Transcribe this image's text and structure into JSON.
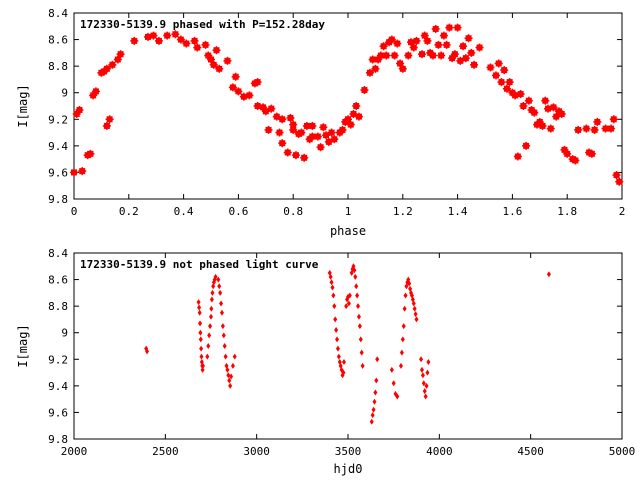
{
  "chart_data": [
    {
      "type": "scatter",
      "title": "172330-5139.9 phased with P=152.28day",
      "xlabel": "phase",
      "ylabel": "I[mag]",
      "xlim": [
        0,
        2
      ],
      "ylim": [
        9.8,
        8.4
      ],
      "y_inverted": true,
      "grid": false,
      "marker_color": "#ff0000",
      "x_ticks": [
        0,
        0.2,
        0.4,
        0.6,
        0.8,
        1,
        1.2,
        1.4,
        1.6,
        1.8,
        2
      ],
      "x_tick_labels": [
        "0",
        "0.2",
        "0.4",
        "0.6",
        "0.8",
        "1",
        "1.2",
        "1.4",
        "1.6",
        "1.8",
        "2"
      ],
      "y_ticks": [
        8.4,
        8.6,
        8.8,
        9,
        9.2,
        9.4,
        9.6,
        9.8
      ],
      "y_tick_labels": [
        "8.4",
        "8.6",
        "8.8",
        "9",
        "9.2",
        "9.4",
        "9.6",
        "9.8"
      ],
      "points": [
        [
          0.0,
          9.6
        ],
        [
          0.01,
          9.16
        ],
        [
          0.02,
          9.13
        ],
        [
          0.03,
          9.59
        ],
        [
          0.05,
          9.47
        ],
        [
          0.06,
          9.46
        ],
        [
          0.07,
          9.02
        ],
        [
          0.08,
          8.99
        ],
        [
          0.1,
          8.85
        ],
        [
          0.11,
          8.84
        ],
        [
          0.12,
          8.82
        ],
        [
          0.12,
          9.25
        ],
        [
          0.13,
          9.2
        ],
        [
          0.14,
          8.79
        ],
        [
          0.16,
          8.75
        ],
        [
          0.17,
          8.71
        ],
        [
          0.22,
          8.61
        ],
        [
          0.27,
          8.58
        ],
        [
          0.29,
          8.57
        ],
        [
          0.31,
          8.61
        ],
        [
          0.34,
          8.57
        ],
        [
          0.37,
          8.56
        ],
        [
          0.39,
          8.6
        ],
        [
          0.41,
          8.63
        ],
        [
          0.44,
          8.61
        ],
        [
          0.45,
          8.66
        ],
        [
          0.48,
          8.64
        ],
        [
          0.49,
          8.72
        ],
        [
          0.5,
          8.75
        ],
        [
          0.51,
          8.79
        ],
        [
          0.52,
          8.68
        ],
        [
          0.53,
          8.82
        ],
        [
          0.56,
          8.76
        ],
        [
          0.58,
          8.96
        ],
        [
          0.59,
          8.88
        ],
        [
          0.6,
          8.99
        ],
        [
          0.62,
          9.03
        ],
        [
          0.64,
          9.02
        ],
        [
          0.66,
          8.93
        ],
        [
          0.67,
          8.92
        ],
        [
          0.67,
          9.1
        ],
        [
          0.69,
          9.11
        ],
        [
          0.7,
          9.14
        ],
        [
          0.71,
          9.28
        ],
        [
          0.72,
          9.12
        ],
        [
          0.74,
          9.18
        ],
        [
          0.75,
          9.3
        ],
        [
          0.76,
          9.38
        ],
        [
          0.76,
          9.2
        ],
        [
          0.78,
          9.45
        ],
        [
          0.79,
          9.19
        ],
        [
          0.8,
          9.28
        ],
        [
          0.8,
          9.24
        ],
        [
          0.81,
          9.47
        ],
        [
          0.82,
          9.31
        ],
        [
          0.83,
          9.3
        ],
        [
          0.84,
          9.49
        ],
        [
          0.85,
          9.25
        ],
        [
          0.86,
          9.35
        ],
        [
          0.87,
          9.33
        ],
        [
          0.87,
          9.25
        ],
        [
          0.89,
          9.33
        ],
        [
          0.9,
          9.41
        ],
        [
          0.91,
          9.26
        ],
        [
          0.92,
          9.32
        ],
        [
          0.93,
          9.37
        ],
        [
          0.94,
          9.3
        ],
        [
          0.95,
          9.35
        ],
        [
          0.97,
          9.3
        ],
        [
          0.98,
          9.28
        ],
        [
          0.99,
          9.22
        ],
        [
          1.0,
          9.2
        ],
        [
          1.01,
          9.24
        ],
        [
          1.02,
          9.16
        ],
        [
          1.03,
          9.1
        ],
        [
          1.04,
          9.18
        ],
        [
          1.06,
          8.98
        ],
        [
          1.08,
          8.85
        ],
        [
          1.09,
          8.75
        ],
        [
          1.1,
          8.82
        ],
        [
          1.11,
          8.75
        ],
        [
          1.12,
          8.72
        ],
        [
          1.13,
          8.65
        ],
        [
          1.14,
          8.72
        ],
        [
          1.15,
          8.62
        ],
        [
          1.16,
          8.6
        ],
        [
          1.17,
          8.72
        ],
        [
          1.18,
          8.63
        ],
        [
          1.19,
          8.78
        ],
        [
          1.2,
          8.82
        ],
        [
          1.22,
          8.72
        ],
        [
          1.23,
          8.62
        ],
        [
          1.24,
          8.66
        ],
        [
          1.25,
          8.61
        ],
        [
          1.27,
          8.71
        ],
        [
          1.28,
          8.57
        ],
        [
          1.29,
          8.61
        ],
        [
          1.3,
          8.7
        ],
        [
          1.31,
          8.72
        ],
        [
          1.32,
          8.52
        ],
        [
          1.33,
          8.64
        ],
        [
          1.34,
          8.72
        ],
        [
          1.35,
          8.57
        ],
        [
          1.36,
          8.64
        ],
        [
          1.37,
          8.51
        ],
        [
          1.38,
          8.74
        ],
        [
          1.39,
          8.71
        ],
        [
          1.4,
          8.51
        ],
        [
          1.41,
          8.76
        ],
        [
          1.42,
          8.65
        ],
        [
          1.43,
          8.74
        ],
        [
          1.44,
          8.59
        ],
        [
          1.45,
          8.7
        ],
        [
          1.46,
          8.79
        ],
        [
          1.48,
          8.66
        ],
        [
          1.52,
          8.81
        ],
        [
          1.54,
          8.87
        ],
        [
          1.55,
          8.78
        ],
        [
          1.56,
          8.92
        ],
        [
          1.57,
          8.83
        ],
        [
          1.58,
          8.97
        ],
        [
          1.59,
          8.92
        ],
        [
          1.6,
          9.0
        ],
        [
          1.61,
          9.02
        ],
        [
          1.62,
          9.48
        ],
        [
          1.63,
          9.01
        ],
        [
          1.64,
          9.1
        ],
        [
          1.65,
          9.4
        ],
        [
          1.66,
          9.06
        ],
        [
          1.67,
          9.13
        ],
        [
          1.68,
          9.15
        ],
        [
          1.69,
          9.24
        ],
        [
          1.7,
          9.22
        ],
        [
          1.71,
          9.25
        ],
        [
          1.72,
          9.06
        ],
        [
          1.73,
          9.12
        ],
        [
          1.74,
          9.27
        ],
        [
          1.75,
          9.11
        ],
        [
          1.76,
          9.18
        ],
        [
          1.77,
          9.14
        ],
        [
          1.78,
          9.16
        ],
        [
          1.79,
          9.43
        ],
        [
          1.8,
          9.46
        ],
        [
          1.82,
          9.5
        ],
        [
          1.83,
          9.51
        ],
        [
          1.84,
          9.28
        ],
        [
          1.87,
          9.27
        ],
        [
          1.88,
          9.45
        ],
        [
          1.89,
          9.46
        ],
        [
          1.9,
          9.28
        ],
        [
          1.91,
          9.22
        ],
        [
          1.94,
          9.27
        ],
        [
          1.96,
          9.27
        ],
        [
          1.97,
          9.2
        ],
        [
          1.98,
          9.62
        ],
        [
          1.99,
          9.67
        ]
      ]
    },
    {
      "type": "scatter",
      "title": "172330-5139.9 not phased light curve",
      "xlabel": "hjd0",
      "ylabel": "I[mag]",
      "xlim": [
        2000,
        5000
      ],
      "ylim": [
        9.8,
        8.4
      ],
      "y_inverted": true,
      "grid": false,
      "marker_color": "#ff0000",
      "x_ticks": [
        2000,
        2500,
        3000,
        3500,
        4000,
        4500,
        5000
      ],
      "x_tick_labels": [
        "2000",
        "2500",
        "3000",
        "3500",
        "4000",
        "4500",
        "5000"
      ],
      "y_ticks": [
        8.4,
        8.6,
        8.8,
        9,
        9.2,
        9.4,
        9.6,
        9.8
      ],
      "y_tick_labels": [
        "8.4",
        "8.6",
        "8.8",
        "9",
        "9.2",
        "9.4",
        "9.6",
        "9.8"
      ],
      "points": [
        [
          2395,
          9.12
        ],
        [
          2400,
          9.14
        ],
        [
          2682,
          8.77
        ],
        [
          2685,
          8.81
        ],
        [
          2688,
          8.85
        ],
        [
          2690,
          8.93
        ],
        [
          2692,
          9.0
        ],
        [
          2694,
          9.05
        ],
        [
          2696,
          9.12
        ],
        [
          2698,
          9.18
        ],
        [
          2700,
          9.22
        ],
        [
          2702,
          9.25
        ],
        [
          2704,
          9.28
        ],
        [
          2706,
          9.25
        ],
        [
          2730,
          9.18
        ],
        [
          2735,
          9.1
        ],
        [
          2740,
          9.02
        ],
        [
          2745,
          8.95
        ],
        [
          2750,
          8.88
        ],
        [
          2752,
          8.82
        ],
        [
          2755,
          8.75
        ],
        [
          2758,
          8.7
        ],
        [
          2762,
          8.65
        ],
        [
          2766,
          8.62
        ],
        [
          2770,
          8.6
        ],
        [
          2775,
          8.58
        ],
        [
          2790,
          8.6
        ],
        [
          2795,
          8.65
        ],
        [
          2800,
          8.7
        ],
        [
          2805,
          8.78
        ],
        [
          2810,
          8.85
        ],
        [
          2815,
          8.95
        ],
        [
          2820,
          9.02
        ],
        [
          2825,
          9.1
        ],
        [
          2830,
          9.18
        ],
        [
          2835,
          9.25
        ],
        [
          2840,
          9.28
        ],
        [
          2845,
          9.32
        ],
        [
          2850,
          9.36
        ],
        [
          2855,
          9.4
        ],
        [
          2860,
          9.33
        ],
        [
          2870,
          9.25
        ],
        [
          2880,
          9.18
        ],
        [
          3400,
          8.55
        ],
        [
          3405,
          8.58
        ],
        [
          3410,
          8.62
        ],
        [
          3415,
          8.66
        ],
        [
          3420,
          8.72
        ],
        [
          3425,
          8.8
        ],
        [
          3430,
          8.9
        ],
        [
          3435,
          8.98
        ],
        [
          3440,
          9.05
        ],
        [
          3445,
          9.12
        ],
        [
          3450,
          9.18
        ],
        [
          3455,
          9.22
        ],
        [
          3460,
          9.25
        ],
        [
          3465,
          9.28
        ],
        [
          3470,
          9.32
        ],
        [
          3475,
          9.3
        ],
        [
          3478,
          9.22
        ],
        [
          3490,
          8.8
        ],
        [
          3495,
          8.75
        ],
        [
          3500,
          8.73
        ],
        [
          3505,
          8.78
        ],
        [
          3510,
          8.72
        ],
        [
          3520,
          8.55
        ],
        [
          3525,
          8.52
        ],
        [
          3530,
          8.5
        ],
        [
          3535,
          8.53
        ],
        [
          3540,
          8.58
        ],
        [
          3545,
          8.65
        ],
        [
          3550,
          8.72
        ],
        [
          3555,
          8.8
        ],
        [
          3560,
          8.88
        ],
        [
          3565,
          8.95
        ],
        [
          3570,
          9.05
        ],
        [
          3575,
          9.15
        ],
        [
          3580,
          9.25
        ],
        [
          3630,
          9.67
        ],
        [
          3635,
          9.62
        ],
        [
          3640,
          9.58
        ],
        [
          3645,
          9.52
        ],
        [
          3650,
          9.45
        ],
        [
          3655,
          9.36
        ],
        [
          3660,
          9.2
        ],
        [
          3740,
          9.28
        ],
        [
          3750,
          9.38
        ],
        [
          3760,
          9.46
        ],
        [
          3770,
          9.48
        ],
        [
          3790,
          9.25
        ],
        [
          3795,
          9.15
        ],
        [
          3800,
          9.05
        ],
        [
          3805,
          8.95
        ],
        [
          3810,
          8.82
        ],
        [
          3815,
          8.72
        ],
        [
          3820,
          8.65
        ],
        [
          3825,
          8.62
        ],
        [
          3830,
          8.6
        ],
        [
          3835,
          8.63
        ],
        [
          3840,
          8.67
        ],
        [
          3845,
          8.7
        ],
        [
          3850,
          8.72
        ],
        [
          3855,
          8.75
        ],
        [
          3860,
          8.78
        ],
        [
          3865,
          8.82
        ],
        [
          3870,
          8.86
        ],
        [
          3875,
          8.9
        ],
        [
          3900,
          9.2
        ],
        [
          3905,
          9.28
        ],
        [
          3910,
          9.32
        ],
        [
          3915,
          9.38
        ],
        [
          3920,
          9.44
        ],
        [
          3925,
          9.48
        ],
        [
          3930,
          9.4
        ],
        [
          3935,
          9.3
        ],
        [
          3940,
          9.22
        ],
        [
          4600,
          8.56
        ]
      ]
    }
  ]
}
